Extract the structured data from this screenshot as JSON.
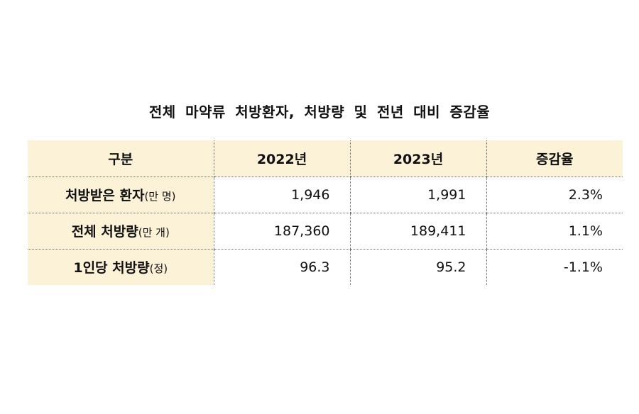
{
  "title": "전체 마약류 처방환자, 처방량 및 전년 대비 증감율",
  "table": {
    "headers": [
      "구분",
      "2022년",
      "2023년",
      "증감율"
    ],
    "rows": [
      {
        "label": "처방받은 환자",
        "unit": "(만 명)",
        "y2022": "1,946",
        "y2023": "1,991",
        "change": "2.3%"
      },
      {
        "label": "전체 처방량",
        "unit": "(만 개)",
        "y2022": "187,360",
        "y2023": "189,411",
        "change": "1.1%"
      },
      {
        "label": "1인당 처방량",
        "unit": "(정)",
        "y2022": "96.3",
        "y2023": "95.2",
        "change": "-1.1%"
      }
    ]
  },
  "colors": {
    "header_fill": "#fbf2d7",
    "grid_line": "#666666"
  }
}
